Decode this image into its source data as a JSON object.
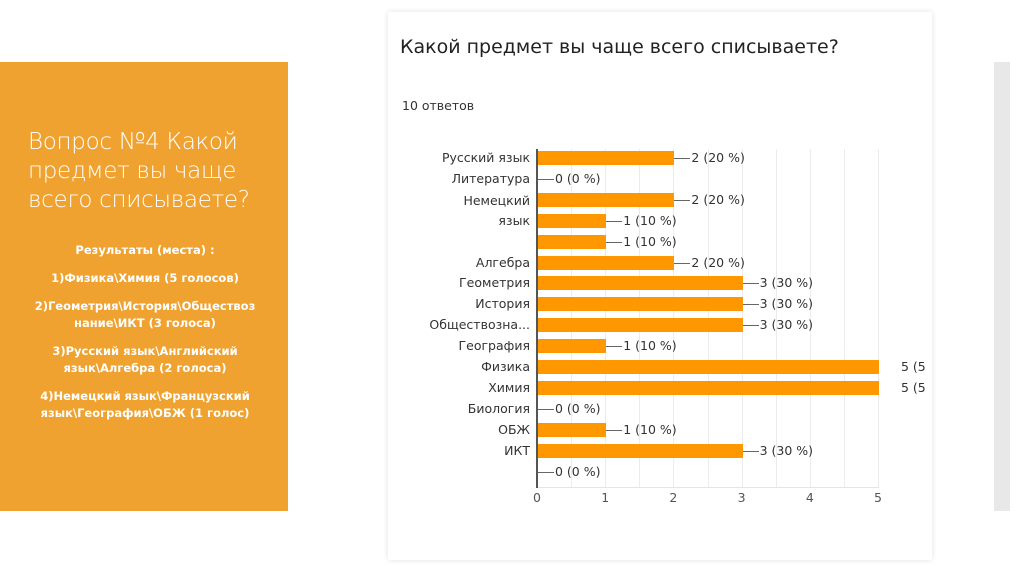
{
  "slide": {
    "title": "Вопрос №4 Какой предмет вы чаще всего списываете?",
    "results_heading": "Результаты (места) :",
    "results": [
      "1)Физика\\Химия (5 голосов)",
      "2)Геометрия\\История\\Обществоз нание\\ИКТ (3 голоса)",
      "3)Русский язык\\Английский язык\\Алгебра (2 голоса)",
      "4)Немецкий язык\\Французский язык\\География\\ОБЖ (1 голос)"
    ],
    "accent_color": "#EFA22F"
  },
  "card": {
    "title": "Какой предмет вы чаще всего списываете?",
    "response_count": "10 ответов",
    "bar_color": "#FF9800"
  },
  "chart_data": {
    "type": "bar",
    "orientation": "horizontal",
    "title": "Какой предмет вы чаще всего списываете?",
    "subtitle": "10 ответов",
    "categories": [
      "Русский язык",
      "Литература",
      "",
      "Немецкий язык",
      "",
      "Алгебра",
      "Геометрия",
      "История",
      "Обществозна...",
      "География",
      "Физика",
      "Химия",
      "Биология",
      "ОБЖ",
      "ИКТ",
      ""
    ],
    "values": [
      2,
      0,
      2,
      1,
      1,
      2,
      3,
      3,
      3,
      1,
      5,
      5,
      0,
      1,
      3,
      0
    ],
    "value_labels": [
      "2 (20 %)",
      "0 (0 %)",
      "2 (20 %)",
      "1 (10 %)",
      "1 (10 %)",
      "2 (20 %)",
      "3 (30 %)",
      "3 (30 %)",
      "3 (30 %)",
      "1 (10 %)",
      "5 (5",
      "5 (5",
      "0 (0 %)",
      "1 (10 %)",
      "3 (30 %)",
      "0 (0 %)"
    ],
    "xlabel": "",
    "ylabel": "",
    "xlim": [
      0,
      5
    ],
    "x_ticks": [
      "0",
      "1",
      "2",
      "3",
      "4",
      "5"
    ],
    "grid": true,
    "legend": "none"
  }
}
